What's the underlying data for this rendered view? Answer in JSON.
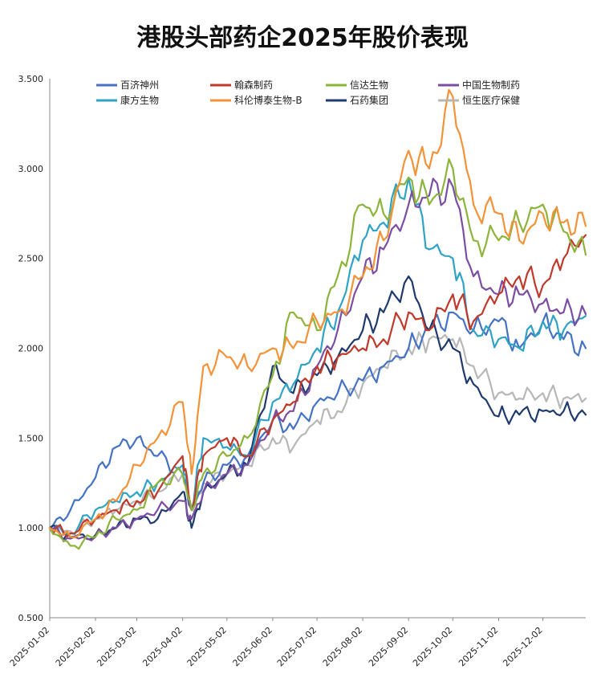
{
  "chart_data": {
    "type": "line",
    "title": "港股头部药企2025年股价表现",
    "xlabel": "",
    "ylabel": "",
    "ylim": [
      0.5,
      3.5
    ],
    "yticks": [
      "0.500",
      "1.000",
      "1.500",
      "2.000",
      "2.500",
      "3.000",
      "3.500"
    ],
    "xlim": [
      "2025-01-02",
      "2025-12-31"
    ],
    "xticks": [
      "2025-01-02",
      "2025-02-02",
      "2025-03-02",
      "2025-04-02",
      "2025-05-02",
      "2025-06-02",
      "2025-07-02",
      "2025-08-02",
      "2025-09-02",
      "2025-10-02",
      "2025-11-02",
      "2025-12-02"
    ],
    "grid": false,
    "legend_position": "top",
    "x": [
      "2025-01-02",
      "2025-01-16",
      "2025-02-02",
      "2025-02-16",
      "2025-03-02",
      "2025-03-16",
      "2025-04-02",
      "2025-04-08",
      "2025-04-16",
      "2025-05-02",
      "2025-05-16",
      "2025-06-02",
      "2025-06-16",
      "2025-07-02",
      "2025-07-16",
      "2025-08-02",
      "2025-08-16",
      "2025-09-02",
      "2025-09-16",
      "2025-10-02",
      "2025-10-16",
      "2025-11-02",
      "2025-11-16",
      "2025-12-02",
      "2025-12-16",
      "2025-12-31"
    ],
    "series": [
      {
        "name": "百济神州",
        "color": "#4472C4",
        "values": [
          1.0,
          1.1,
          1.28,
          1.45,
          1.5,
          1.4,
          1.3,
          1.1,
          1.25,
          1.35,
          1.4,
          1.6,
          1.55,
          1.7,
          1.75,
          1.82,
          1.9,
          2.0,
          2.1,
          2.2,
          2.1,
          2.15,
          2.0,
          2.15,
          2.05,
          2.0
        ]
      },
      {
        "name": "翰森制药",
        "color": "#C0392B",
        "values": [
          1.0,
          0.97,
          1.05,
          1.1,
          1.15,
          1.2,
          1.4,
          1.1,
          1.4,
          1.5,
          1.4,
          1.6,
          1.7,
          1.9,
          1.95,
          2.0,
          2.05,
          2.2,
          2.1,
          2.3,
          2.15,
          2.3,
          2.4,
          2.35,
          2.5,
          2.63
        ]
      },
      {
        "name": "信达生物",
        "color": "#8DB43A",
        "values": [
          1.0,
          0.9,
          0.95,
          1.05,
          1.1,
          1.25,
          1.3,
          1.1,
          1.3,
          1.4,
          1.5,
          1.85,
          2.2,
          2.1,
          2.4,
          2.8,
          2.75,
          2.95,
          2.8,
          3.0,
          2.6,
          2.6,
          2.7,
          2.8,
          2.65,
          2.52
        ]
      },
      {
        "name": "中国生物制药",
        "color": "#7B4EA3",
        "values": [
          1.0,
          0.94,
          0.95,
          1.0,
          1.05,
          1.1,
          1.15,
          1.05,
          1.2,
          1.3,
          1.35,
          1.6,
          1.65,
          1.9,
          2.1,
          2.4,
          2.55,
          2.8,
          2.85,
          2.9,
          2.4,
          2.3,
          2.3,
          2.25,
          2.2,
          2.19
        ]
      },
      {
        "name": "康方生物",
        "color": "#2EA3C6",
        "values": [
          1.0,
          0.97,
          1.1,
          1.15,
          1.2,
          1.25,
          1.35,
          1.1,
          1.5,
          1.45,
          1.4,
          1.7,
          1.8,
          2.0,
          2.2,
          2.6,
          2.7,
          2.95,
          2.55,
          2.5,
          2.1,
          2.05,
          2.0,
          2.15,
          2.1,
          2.18
        ]
      },
      {
        "name": "科伦博泰生物-B",
        "color": "#F39237",
        "values": [
          1.0,
          0.95,
          1.05,
          1.15,
          1.35,
          1.5,
          1.7,
          1.3,
          1.9,
          1.95,
          1.9,
          2.0,
          2.0,
          2.15,
          2.2,
          2.4,
          2.6,
          3.1,
          3.0,
          3.4,
          2.8,
          2.75,
          2.6,
          2.75,
          2.7,
          2.68
        ]
      },
      {
        "name": "石药集团",
        "color": "#1F3A6E",
        "values": [
          1.0,
          0.95,
          0.96,
          1.0,
          1.05,
          1.05,
          1.2,
          1.0,
          1.2,
          1.3,
          1.35,
          1.9,
          1.75,
          1.85,
          1.95,
          2.1,
          2.2,
          2.4,
          2.1,
          2.0,
          1.8,
          1.62,
          1.63,
          1.65,
          1.65,
          1.63
        ]
      },
      {
        "name": "恒生医疗保健",
        "color": "#B7B7B7",
        "values": [
          1.0,
          0.98,
          1.05,
          1.1,
          1.15,
          1.2,
          1.3,
          1.1,
          1.25,
          1.3,
          1.35,
          1.5,
          1.45,
          1.6,
          1.65,
          1.8,
          1.9,
          2.0,
          2.05,
          2.05,
          1.9,
          1.75,
          1.72,
          1.75,
          1.72,
          1.72
        ]
      }
    ]
  }
}
